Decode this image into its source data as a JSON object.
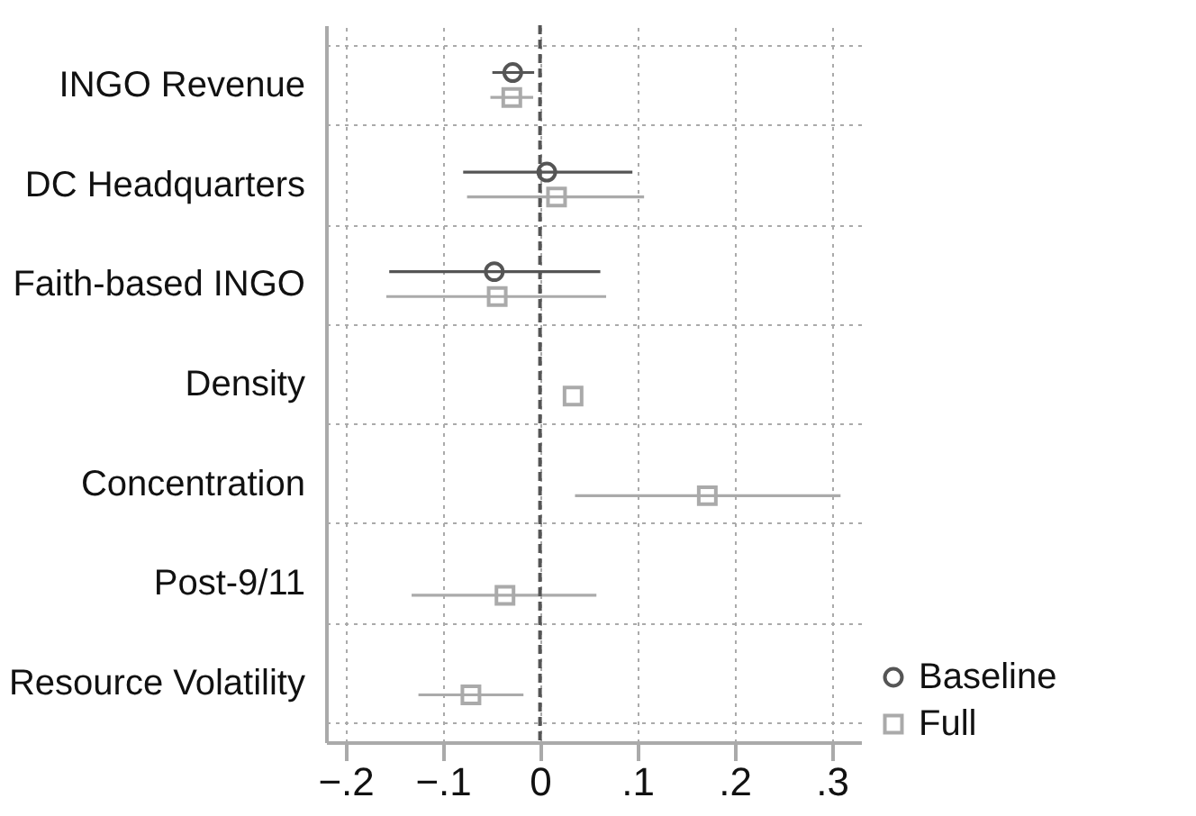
{
  "chart_data": {
    "type": "scatter",
    "orientation": "horizontal",
    "categories": [
      "INGO Revenue",
      "DC Headquarters",
      "Faith-based INGO",
      "Density",
      "Concentration",
      "Post-9/11",
      "Resource Volatility"
    ],
    "series": [
      {
        "name": "Baseline",
        "color": "#555555",
        "marker": "circle",
        "values": [
          -0.028,
          0.007,
          -0.047,
          null,
          null,
          null,
          null
        ],
        "errors": [
          [
            -0.049,
            -0.006
          ],
          [
            -0.079,
            0.095
          ],
          [
            -0.155,
            0.062
          ],
          null,
          null,
          null,
          null
        ]
      },
      {
        "name": "Full",
        "color": "#aaaaaa",
        "marker": "square",
        "values": [
          -0.029,
          0.017,
          -0.044,
          0.034,
          0.172,
          -0.036,
          -0.071
        ],
        "errors": [
          [
            -0.051,
            -0.007
          ],
          [
            -0.075,
            0.107
          ],
          [
            -0.158,
            0.068
          ],
          null,
          [
            0.036,
            0.309
          ],
          [
            -0.132,
            0.058
          ],
          [
            -0.125,
            -0.017
          ]
        ]
      }
    ],
    "xlim": [
      -0.22,
      0.33
    ],
    "xticks": [
      {
        "value": -0.2,
        "label": "−.2"
      },
      {
        "value": -0.1,
        "label": "−.1"
      },
      0,
      {
        "value": 0.1,
        "label": ".1"
      },
      {
        "value": 0.2,
        "label": ".2"
      },
      {
        "value": 0.3,
        "label": ".3"
      }
    ],
    "ref_lines": [
      {
        "axis": "x",
        "value": 0,
        "line_style": "dashed",
        "color": "#555555"
      }
    ],
    "grid": true,
    "legend": "right"
  }
}
